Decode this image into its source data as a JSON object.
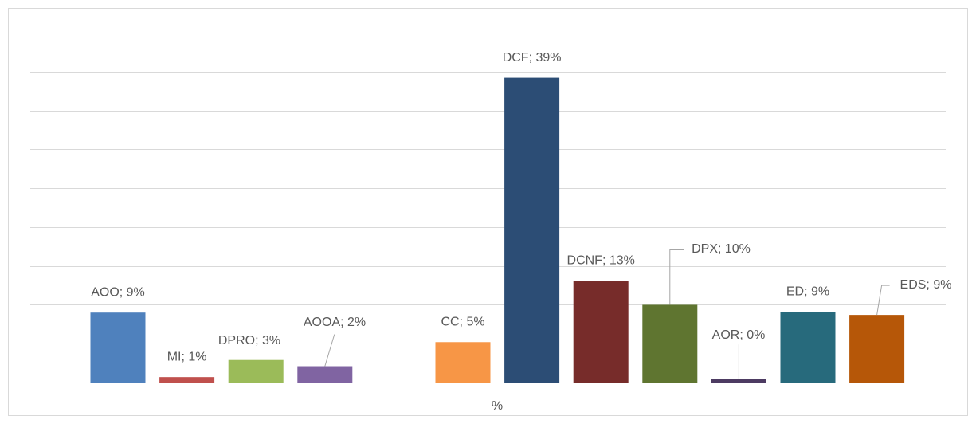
{
  "chart_data": {
    "type": "bar",
    "categories": [
      "%"
    ],
    "series": [
      {
        "color": "#4f81bd",
        "values": [
          9.0
        ],
        "value_labels": [
          "AOO; 9%"
        ]
      },
      {
        "color": "#c0504d",
        "values": [
          0.7
        ],
        "value_labels": [
          "MI; 1%"
        ]
      },
      {
        "color": "#9bbb59",
        "values": [
          2.9
        ],
        "value_labels": [
          "DPRO; 3%"
        ]
      },
      {
        "color": "#8064a2",
        "values": [
          2.1
        ],
        "value_labels": [
          "AOOA; 2%"
        ]
      },
      {
        "color": "#f79646",
        "values": [
          5.2
        ],
        "value_labels": [
          "CC; 5%"
        ]
      },
      {
        "color": "#2c4d75",
        "values": [
          39.2
        ],
        "value_labels": [
          "DCF; 39%"
        ]
      },
      {
        "color": "#772c2a",
        "values": [
          13.1
        ],
        "value_labels": [
          "DCNF; 13%"
        ]
      },
      {
        "color": "#5f7530",
        "values": [
          10.0
        ],
        "value_labels": [
          "DPX; 10%"
        ]
      },
      {
        "color": "#4d3b62",
        "values": [
          0.5
        ],
        "value_labels": [
          "AOR; 0%"
        ]
      },
      {
        "color": "#276a7c",
        "values": [
          9.1
        ],
        "value_labels": [
          "ED; 9%"
        ]
      },
      {
        "color": "#b65708",
        "values": [
          8.7
        ],
        "value_labels": [
          "EDS; 9%"
        ]
      }
    ],
    "ylim": [
      0,
      45
    ],
    "yticks": [
      0,
      5,
      10,
      15,
      20,
      25,
      30,
      35,
      40,
      45
    ],
    "grid": true
  }
}
